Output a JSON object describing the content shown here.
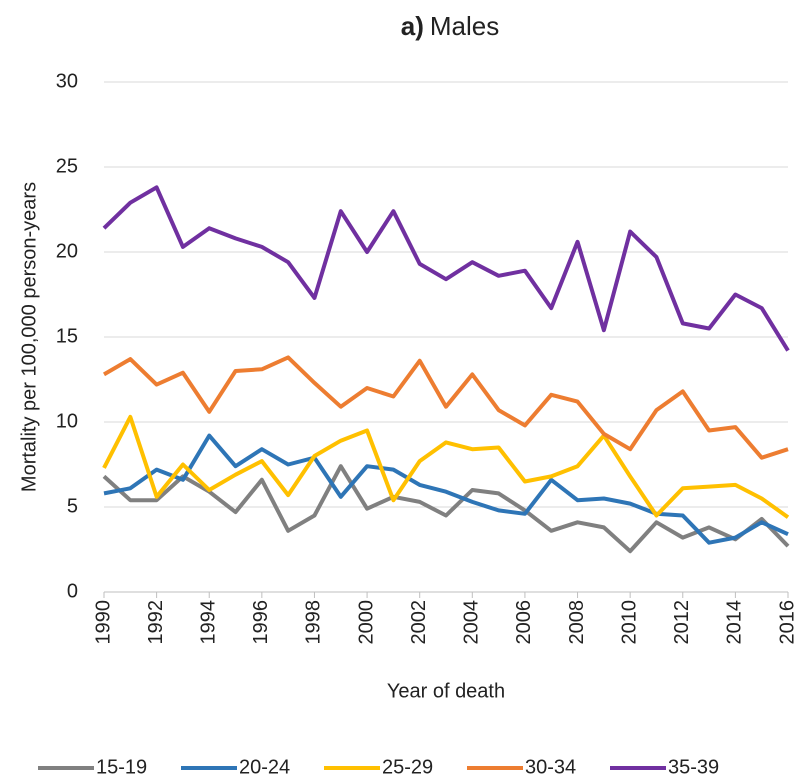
{
  "chart_data": {
    "type": "line",
    "panel_label": "a)",
    "title": "Males",
    "x_label": "Year of death",
    "y_label": "Mortality per 100,000 person-years",
    "x": [
      1990,
      1991,
      1992,
      1993,
      1994,
      1995,
      1996,
      1997,
      1998,
      1999,
      2000,
      2001,
      2002,
      2003,
      2004,
      2005,
      2006,
      2007,
      2008,
      2009,
      2010,
      2011,
      2012,
      2013,
      2014,
      2015,
      2016
    ],
    "xlim": [
      1990,
      2016
    ],
    "xticks": [
      1990,
      1992,
      1994,
      1996,
      1998,
      2000,
      2002,
      2004,
      2006,
      2008,
      2010,
      2012,
      2014,
      2016
    ],
    "ylim": [
      0,
      30
    ],
    "yticks": [
      0,
      5,
      10,
      15,
      20,
      25,
      30
    ],
    "grid": true,
    "legend": "bottom",
    "series": [
      {
        "name": "15-19",
        "color": "#808080",
        "values": [
          6.8,
          5.4,
          5.4,
          6.8,
          5.9,
          4.7,
          6.6,
          3.6,
          4.5,
          7.4,
          4.9,
          5.6,
          5.3,
          4.5,
          6.0,
          5.8,
          4.8,
          3.6,
          4.1,
          3.8,
          2.4,
          4.1,
          3.2,
          3.8,
          3.1,
          4.3,
          2.7
        ]
      },
      {
        "name": "20-24",
        "color": "#2e75b6",
        "values": [
          5.8,
          6.1,
          7.2,
          6.6,
          9.2,
          7.4,
          8.4,
          7.5,
          7.9,
          5.6,
          7.4,
          7.2,
          6.3,
          5.9,
          5.3,
          4.8,
          4.6,
          6.6,
          5.4,
          5.5,
          5.2,
          4.6,
          4.5,
          2.9,
          3.2,
          4.1,
          3.4
        ]
      },
      {
        "name": "25-29",
        "color": "#ffc000",
        "values": [
          7.3,
          10.3,
          5.6,
          7.5,
          6.0,
          6.9,
          7.7,
          5.7,
          8.0,
          8.9,
          9.5,
          5.4,
          7.7,
          8.8,
          8.4,
          8.5,
          6.5,
          6.8,
          7.4,
          9.2,
          6.8,
          4.5,
          6.1,
          6.2,
          6.3,
          5.5,
          4.4
        ]
      },
      {
        "name": "30-34",
        "color": "#ed7d31",
        "values": [
          12.8,
          13.7,
          12.2,
          12.9,
          10.6,
          13.0,
          13.1,
          13.8,
          12.3,
          10.9,
          12.0,
          11.5,
          13.6,
          10.9,
          12.8,
          10.7,
          9.8,
          11.6,
          11.2,
          9.3,
          8.4,
          10.7,
          11.8,
          9.5,
          9.7,
          7.9,
          8.4
        ]
      },
      {
        "name": "35-39",
        "color": "#7030a0",
        "values": [
          21.4,
          22.9,
          23.8,
          20.3,
          21.4,
          20.8,
          20.3,
          19.4,
          17.3,
          22.4,
          20.0,
          22.4,
          19.3,
          18.4,
          19.4,
          18.6,
          18.9,
          16.7,
          20.6,
          15.4,
          21.2,
          19.7,
          15.8,
          15.5,
          17.5,
          16.7,
          14.2
        ]
      }
    ]
  }
}
